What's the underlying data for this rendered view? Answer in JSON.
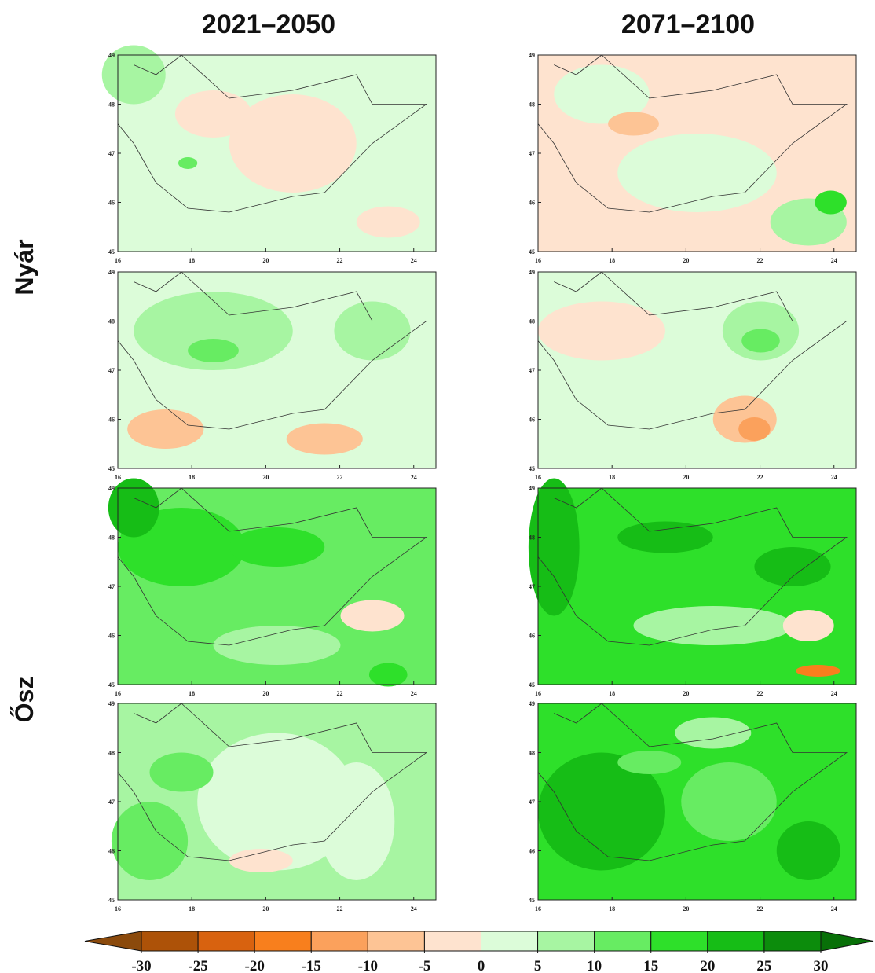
{
  "chart_data": {
    "type": "map-grid",
    "column_titles": [
      "2021–2050",
      "2071–2100"
    ],
    "row_titles": [
      "Nyár",
      "Ősz"
    ],
    "xlim": [
      16,
      24.6
    ],
    "ylim": [
      45,
      49
    ],
    "xticks": [
      16,
      18,
      20,
      22,
      24
    ],
    "yticks": [
      45,
      46,
      47,
      48,
      49
    ],
    "colorbar": {
      "ticks": [
        -30,
        -25,
        -20,
        -15,
        -10,
        -5,
        0,
        5,
        10,
        15,
        20,
        25,
        30
      ],
      "colors": [
        "#8b4a0c",
        "#ad5208",
        "#d8620f",
        "#f87f1d",
        "#fba15c",
        "#fdc495",
        "#fee3cf",
        "#dcfcd9",
        "#a7f5a2",
        "#67ec62",
        "#2ee02a",
        "#16bd16",
        "#0c8c0c",
        "#087008"
      ]
    }
  }
}
